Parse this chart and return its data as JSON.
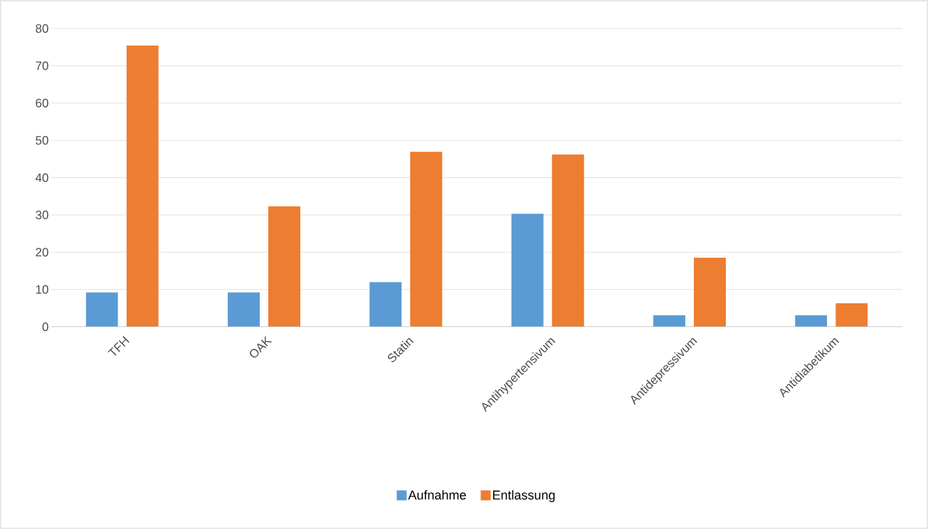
{
  "chart_data": {
    "type": "bar",
    "categories": [
      "TFH",
      "OAK",
      "Statin",
      "Antihypertensivum",
      "Antidepressivum",
      "Antidiabetikum"
    ],
    "series": [
      {
        "name": "Aufnahme",
        "color": "#5b9bd5",
        "values": [
          9.2,
          9.2,
          12.0,
          30.3,
          3.1,
          3.1
        ]
      },
      {
        "name": "Entlassung",
        "color": "#ed7d31",
        "values": [
          75.4,
          32.3,
          46.9,
          46.2,
          18.5,
          6.3
        ]
      }
    ],
    "ylim": [
      0,
      80
    ],
    "yticks": [
      0,
      10,
      20,
      30,
      40,
      50,
      60,
      70,
      80
    ],
    "grid": "y",
    "legend": "bottom"
  }
}
